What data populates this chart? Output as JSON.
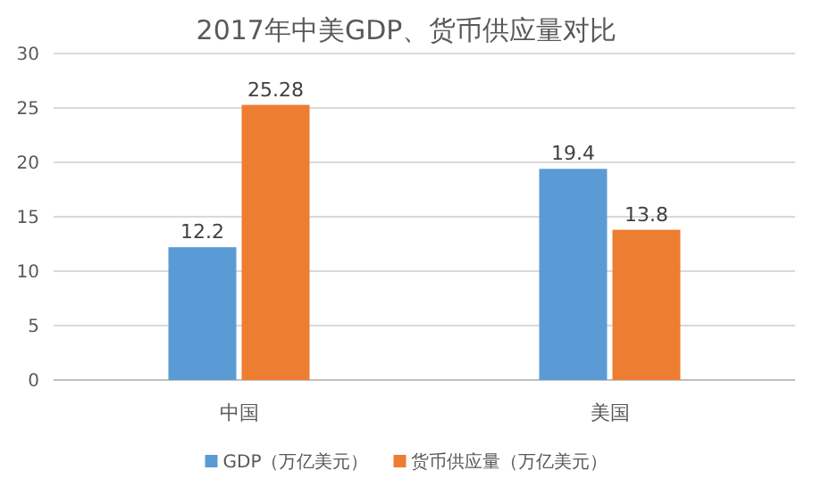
{
  "chart_data": {
    "type": "bar",
    "title": "2017年中美GDP、货币供应量对比",
    "categories": [
      "中国",
      "美国"
    ],
    "series": [
      {
        "name": "GDP（万亿美元）",
        "color": "#5b9bd5",
        "values": [
          12.2,
          19.4
        ]
      },
      {
        "name": "货币供应量（万亿美元）",
        "color": "#ed7d31",
        "values": [
          25.28,
          13.8
        ]
      }
    ],
    "ylim": [
      0,
      30
    ],
    "yticks": [
      0,
      5,
      10,
      15,
      20,
      25,
      30
    ],
    "grid": "y",
    "legend": "bottom",
    "data_labels": true
  }
}
